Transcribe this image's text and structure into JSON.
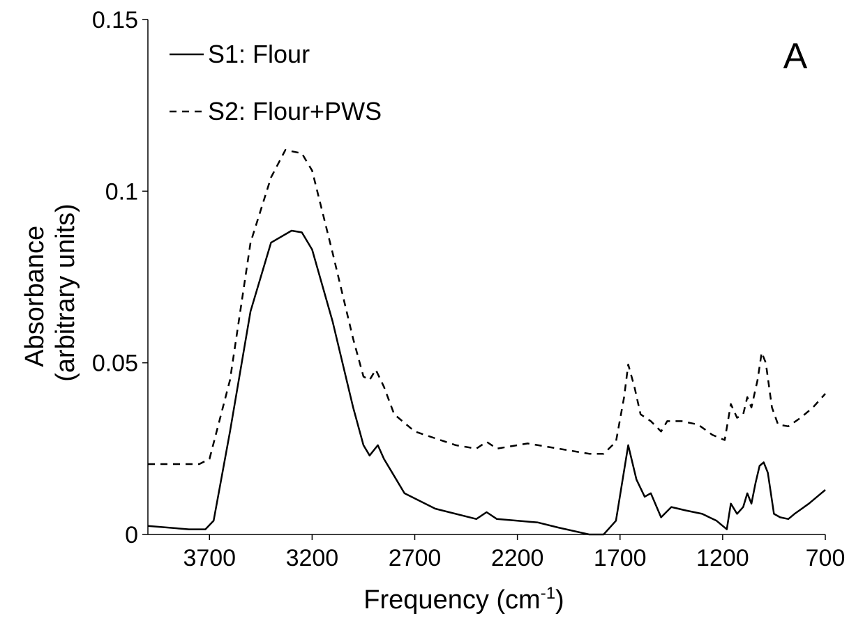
{
  "chart_data": {
    "type": "line",
    "x_label": {
      "text": "Frequency (cm",
      "superscript": "-1",
      "suffix": ")"
    },
    "y_label": [
      "Absorbance",
      "(arbitrary units)"
    ],
    "annotation": "A",
    "xlim": [
      4000,
      700
    ],
    "xticks": [
      3700,
      3200,
      2700,
      2200,
      1700,
      1200,
      700
    ],
    "ylim": [
      0,
      0.15
    ],
    "yticks": [
      0,
      0.05,
      0.1,
      0.15
    ],
    "legend": "upper-left",
    "series": [
      {
        "name": "S1: Flour",
        "color": "#000000",
        "line_style": "solid",
        "x": [
          4000,
          3800,
          3720,
          3680,
          3600,
          3500,
          3400,
          3300,
          3250,
          3200,
          3100,
          3000,
          2950,
          2920,
          2880,
          2850,
          2800,
          2750,
          2600,
          2400,
          2350,
          2300,
          2200,
          2100,
          2000,
          1850,
          1780,
          1720,
          1660,
          1620,
          1580,
          1550,
          1500,
          1450,
          1380,
          1300,
          1230,
          1180,
          1160,
          1130,
          1100,
          1080,
          1060,
          1040,
          1020,
          1000,
          980,
          950,
          920,
          880,
          850,
          780,
          720,
          700
        ],
        "values": [
          0.0025,
          0.0015,
          0.0015,
          0.004,
          0.03,
          0.065,
          0.085,
          0.0885,
          0.088,
          0.083,
          0.062,
          0.037,
          0.026,
          0.023,
          0.026,
          0.022,
          0.017,
          0.012,
          0.0075,
          0.0045,
          0.0065,
          0.0045,
          0.004,
          0.0035,
          0.002,
          0,
          0,
          0.004,
          0.026,
          0.016,
          0.011,
          0.012,
          0.005,
          0.008,
          0.007,
          0.006,
          0.004,
          0.0015,
          0.009,
          0.006,
          0.008,
          0.012,
          0.009,
          0.015,
          0.02,
          0.021,
          0.018,
          0.006,
          0.005,
          0.0045,
          0.006,
          0.009,
          0.012,
          0.013
        ]
      },
      {
        "name": "S2: Flour+PWS",
        "color": "#000000",
        "line_style": "dashed",
        "x": [
          4000,
          3750,
          3700,
          3600,
          3500,
          3400,
          3330,
          3250,
          3200,
          3100,
          3000,
          2950,
          2920,
          2890,
          2850,
          2800,
          2700,
          2500,
          2400,
          2350,
          2300,
          2150,
          2000,
          1850,
          1780,
          1720,
          1680,
          1660,
          1630,
          1600,
          1550,
          1500,
          1470,
          1400,
          1320,
          1250,
          1190,
          1160,
          1130,
          1100,
          1080,
          1060,
          1030,
          1010,
          990,
          960,
          930,
          880,
          820,
          760,
          700
        ],
        "values": [
          0.0205,
          0.0205,
          0.022,
          0.045,
          0.085,
          0.104,
          0.112,
          0.111,
          0.106,
          0.082,
          0.057,
          0.046,
          0.045,
          0.048,
          0.043,
          0.035,
          0.03,
          0.026,
          0.025,
          0.027,
          0.025,
          0.0265,
          0.025,
          0.0235,
          0.0235,
          0.027,
          0.04,
          0.0495,
          0.043,
          0.035,
          0.033,
          0.03,
          0.033,
          0.033,
          0.032,
          0.029,
          0.0275,
          0.038,
          0.034,
          0.035,
          0.04,
          0.037,
          0.045,
          0.053,
          0.05,
          0.037,
          0.032,
          0.0315,
          0.034,
          0.037,
          0.041
        ]
      }
    ]
  }
}
